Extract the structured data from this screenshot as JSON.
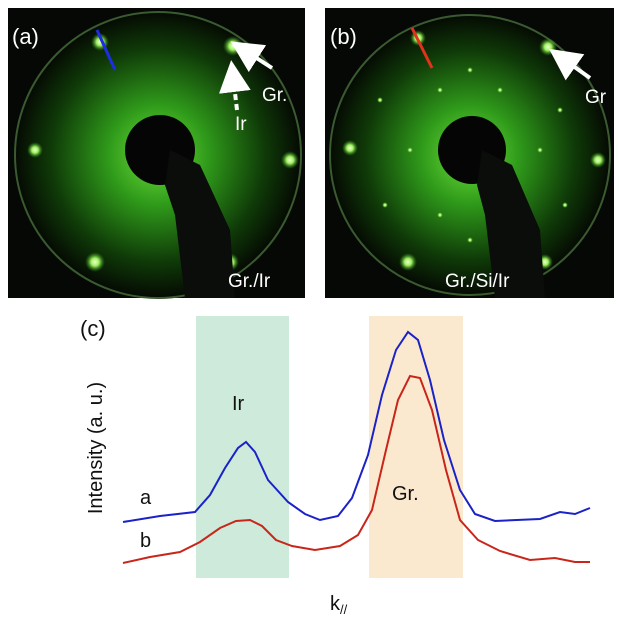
{
  "panel_a": {
    "label": "(a)",
    "spot_gr": "Gr.",
    "spot_ir": "Ir",
    "caption": "Gr./Ir"
  },
  "panel_b": {
    "label": "(b)",
    "spot_gr": "Gr",
    "caption": "Gr./Si/Ir"
  },
  "panel_c": {
    "label": "(c)",
    "band_ir": "Ir",
    "band_gr": "Gr.",
    "curve_a": "a",
    "curve_b": "b",
    "ylabel": "Intensity (a. u.)",
    "xlabel": {
      "main": "k",
      "sub": "//"
    }
  }
}
